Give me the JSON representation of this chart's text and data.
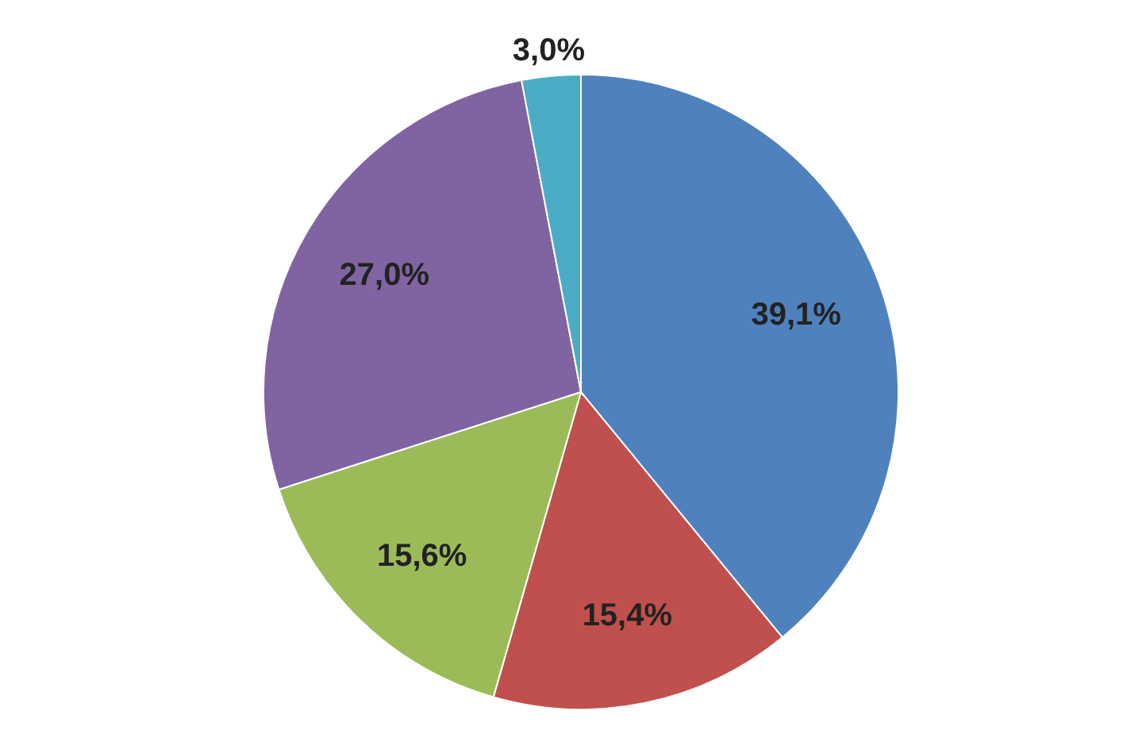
{
  "chart_data": {
    "type": "pie",
    "categories": [
      null,
      null,
      null,
      null,
      null
    ],
    "values": [
      39.1,
      15.4,
      15.6,
      27.0,
      3.0
    ],
    "value_labels": [
      "39,1%",
      "15,4%",
      "15,6%",
      "27,0%",
      "3,0%"
    ],
    "colors": [
      "#4f81bd",
      "#c0504d",
      "#9bbb59",
      "#8064a2",
      "#4bacc6"
    ],
    "legend": false
  }
}
